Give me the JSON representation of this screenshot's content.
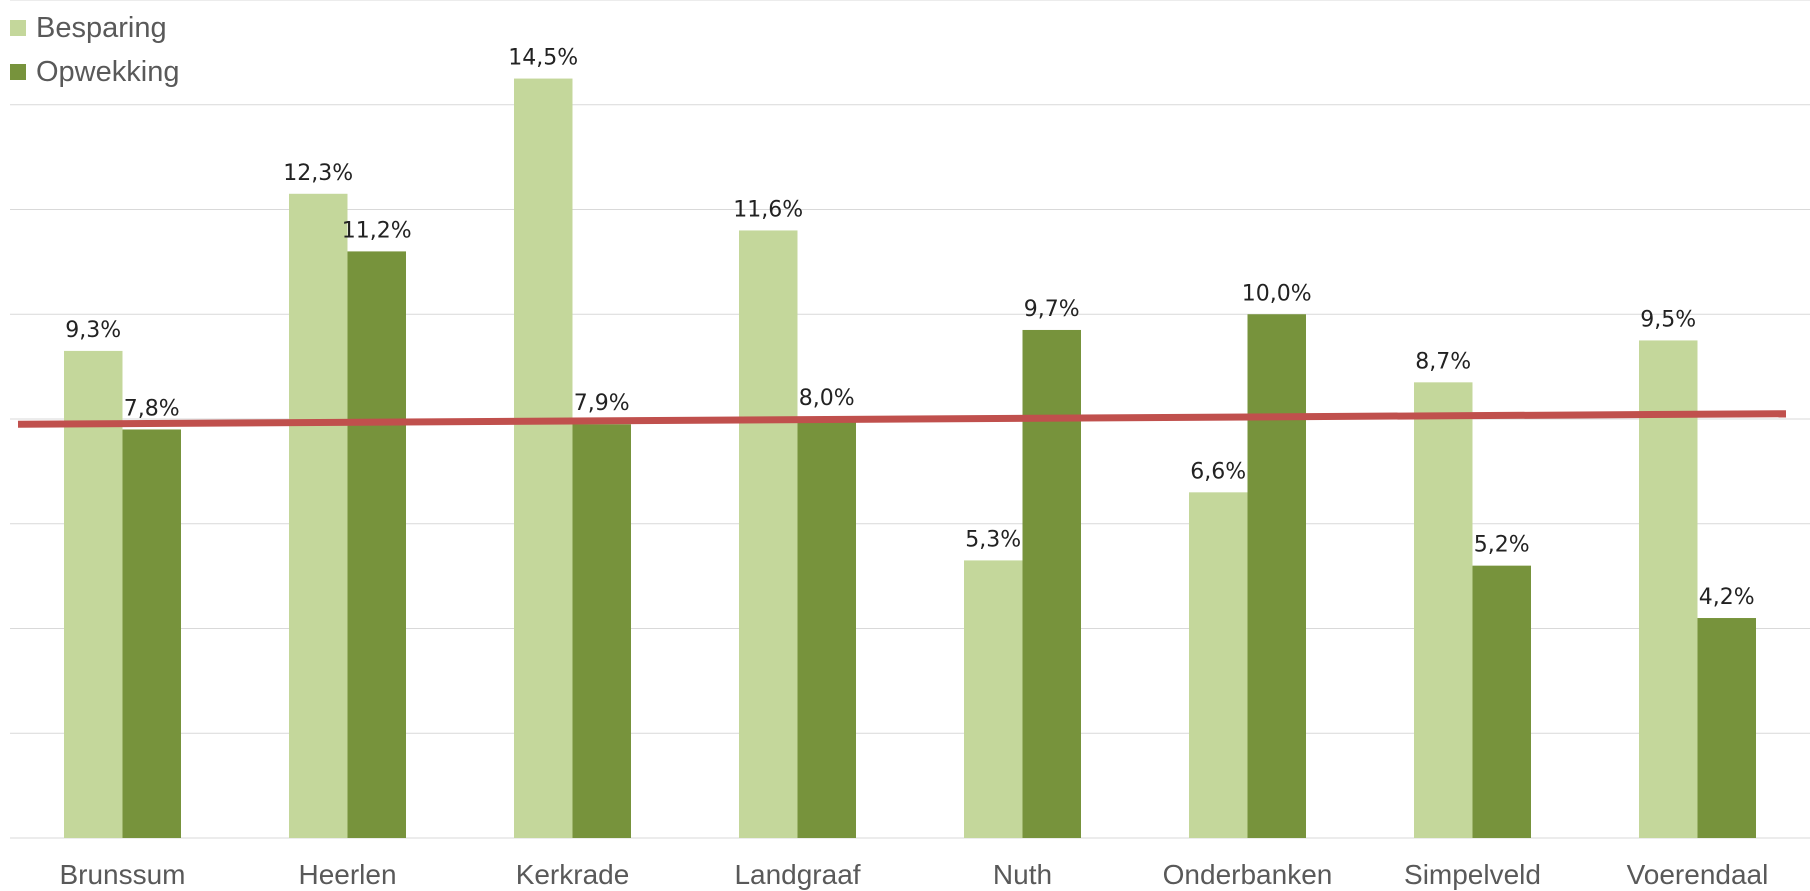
{
  "chart_data": {
    "type": "bar",
    "categories": [
      "Brunssum",
      "Heerlen",
      "Kerkrade",
      "Landgraaf",
      "Nuth",
      "Onderbanken",
      "Simpelveld",
      "Voerendaal"
    ],
    "series": [
      {
        "name": "Besparing",
        "values": [
          9.3,
          12.3,
          14.5,
          11.6,
          5.3,
          6.6,
          8.7,
          9.5
        ],
        "labels": [
          "9,3%",
          "12,3%",
          "14,5%",
          "11,6%",
          "5,3%",
          "6,6%",
          "8,7%",
          "9,5%"
        ],
        "color": "#c4d79b"
      },
      {
        "name": "Opwekking",
        "values": [
          7.8,
          11.2,
          7.9,
          8.0,
          9.7,
          10.0,
          5.2,
          4.2
        ],
        "labels": [
          "7,8%",
          "11,2%",
          "7,9%",
          "8,0%",
          "9,7%",
          "10,0%",
          "5,2%",
          "4,2%"
        ],
        "color": "#77933c"
      }
    ],
    "reference_line": {
      "start": 7.9,
      "end": 8.1,
      "color": "#c0504d"
    },
    "ylim": [
      0,
      16
    ],
    "grid": true,
    "legend_position": "top-left",
    "title": "",
    "xlabel": "",
    "ylabel": ""
  }
}
